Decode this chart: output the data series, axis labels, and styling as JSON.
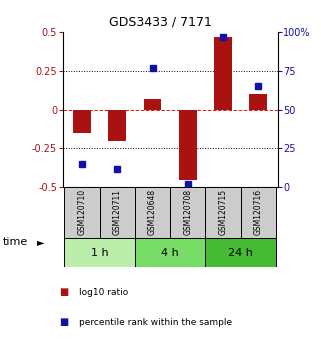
{
  "title": "GDS3433 / 7171",
  "samples": [
    "GSM120710",
    "GSM120711",
    "GSM120648",
    "GSM120708",
    "GSM120715",
    "GSM120716"
  ],
  "log10_ratio": [
    -0.15,
    -0.2,
    0.07,
    -0.45,
    0.47,
    0.1
  ],
  "percentile_rank": [
    15,
    12,
    77,
    2,
    97,
    65
  ],
  "ylim_left": [
    -0.5,
    0.5
  ],
  "ylim_right": [
    0,
    100
  ],
  "yticks_left": [
    -0.5,
    -0.25,
    0,
    0.25,
    0.5
  ],
  "yticks_right": [
    0,
    25,
    50,
    75,
    100
  ],
  "ytick_labels_left": [
    "-0.5",
    "-0.25",
    "0",
    "0.25",
    "0.5"
  ],
  "ytick_labels_right": [
    "0",
    "25",
    "50",
    "75",
    "100%"
  ],
  "bar_color": "#AA1111",
  "dot_color": "#1111AA",
  "hline_color": "#CC2222",
  "grid_color": "#000000",
  "time_groups": [
    {
      "label": "1 h",
      "indices": [
        0,
        1
      ],
      "color": "#BBEEAA"
    },
    {
      "label": "4 h",
      "indices": [
        2,
        3
      ],
      "color": "#77DD66"
    },
    {
      "label": "24 h",
      "indices": [
        4,
        5
      ],
      "color": "#44BB33"
    }
  ],
  "sample_bg_color": "#CCCCCC",
  "legend_items": [
    {
      "label": "log10 ratio",
      "color": "#AA1111"
    },
    {
      "label": "percentile rank within the sample",
      "color": "#1111AA"
    }
  ],
  "time_label": "time",
  "time_arrow": "►",
  "background_color": "#ffffff"
}
